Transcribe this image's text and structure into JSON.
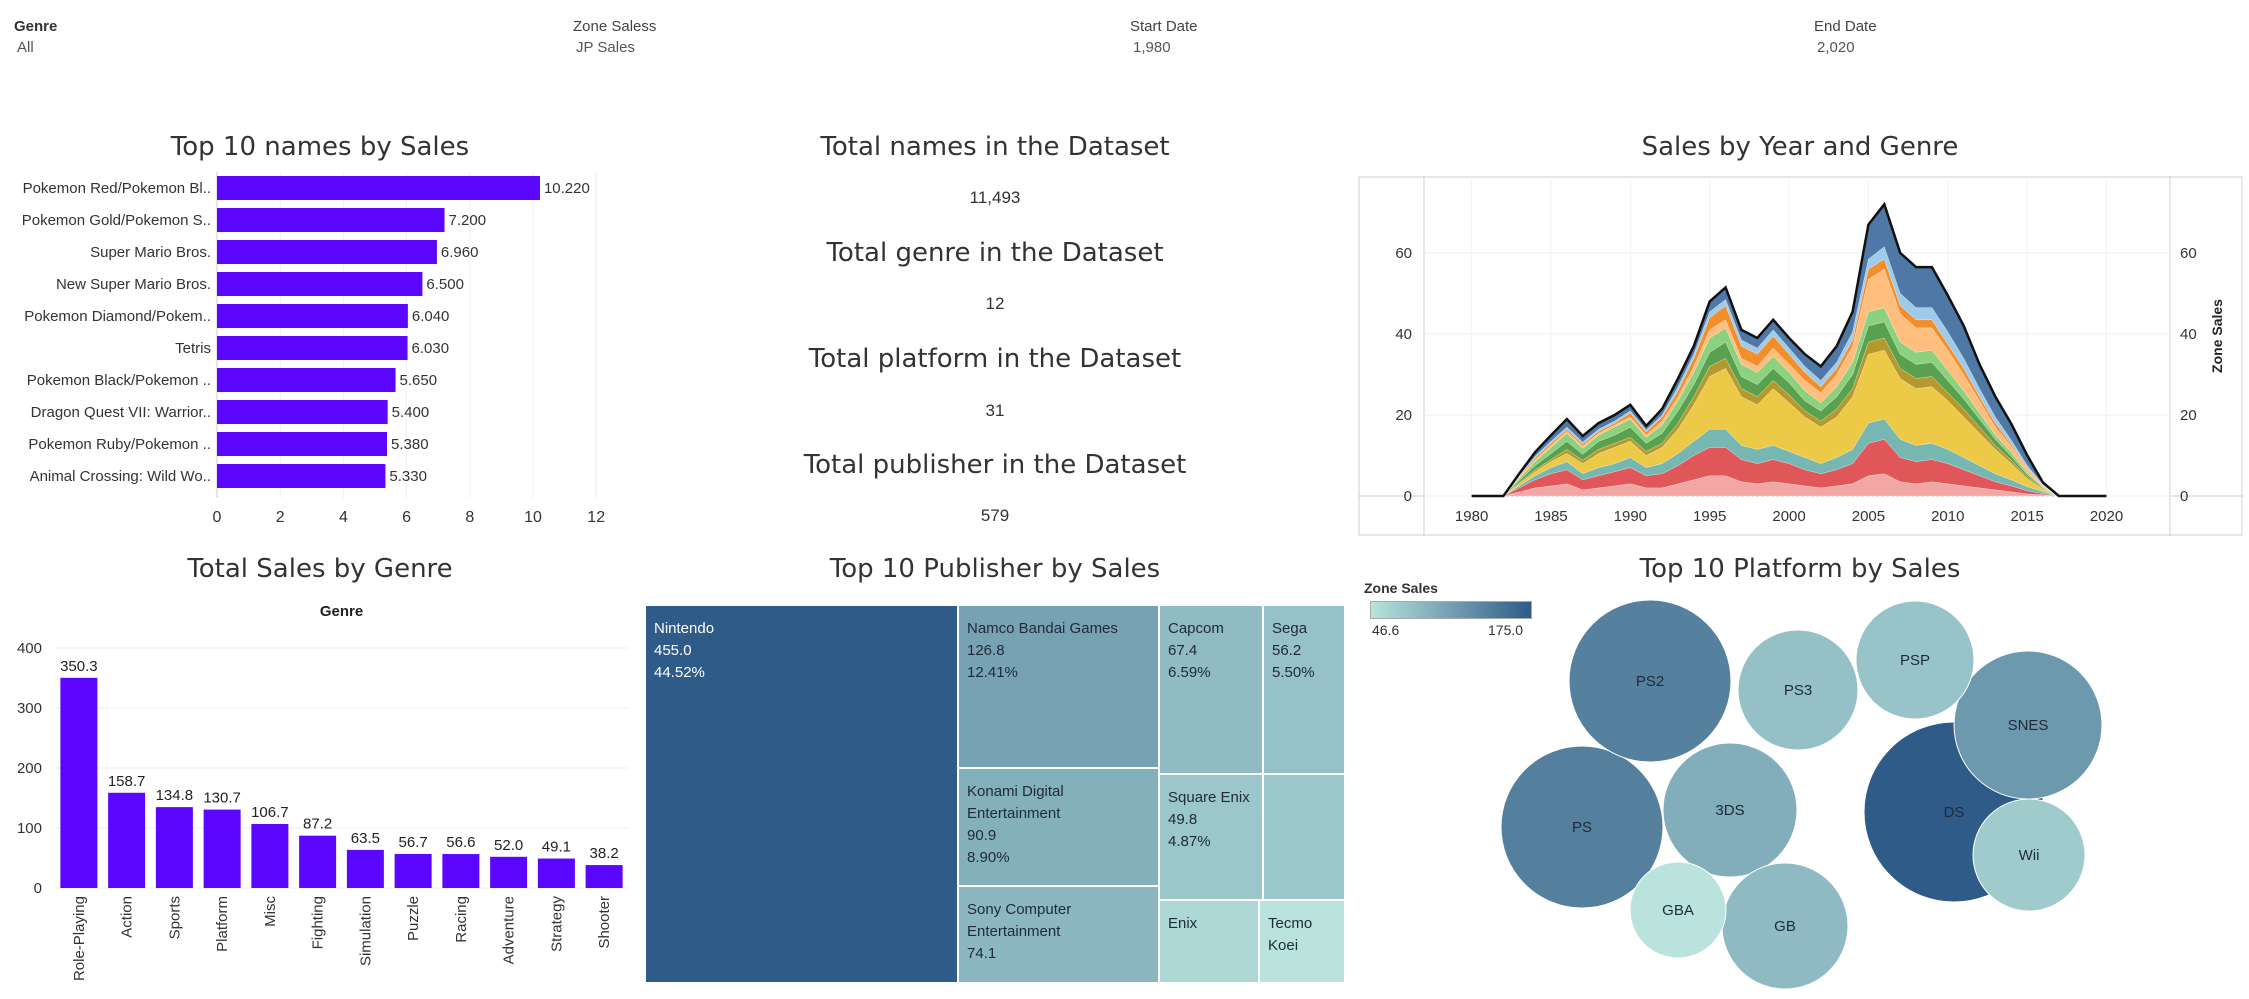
{
  "filters": [
    {
      "label": "Genre",
      "value": "All"
    },
    {
      "label": "Zone Saless",
      "value": "JP Sales"
    },
    {
      "label": "Start Date",
      "value": "1,980"
    },
    {
      "label": "End Date",
      "value": "2,020"
    }
  ],
  "titles": {
    "top_names": "Top 10 names by Sales",
    "sales_year_genre": "Sales by Year and Genre",
    "sales_by_genre": "Total Sales by Genre",
    "top_publisher": "Top 10 Publisher by Sales",
    "top_platform": "Top 10 Platform by Sales"
  },
  "kpis": [
    {
      "title": "Total names in the Dataset",
      "value": "11,493"
    },
    {
      "title": "Total genre in the Dataset",
      "value": "12"
    },
    {
      "title": "Total platform in the Dataset",
      "value": "31"
    },
    {
      "title": "Total publisher in the Dataset",
      "value": "579"
    }
  ],
  "colors": {
    "bar": "#5b06ff",
    "legend_low": "#b9e3dc",
    "legend_high": "#2e5b87"
  },
  "chart_data": [
    {
      "id": "top_names",
      "type": "bar",
      "orientation": "horizontal",
      "title": "Top 10 names by Sales",
      "categories": [
        "Pokemon Red/Pokemon Bl..",
        "Pokemon Gold/Pokemon S..",
        "Super Mario Bros.",
        "New Super Mario Bros.",
        "Pokemon Diamond/Pokem..",
        "Tetris",
        "Pokemon Black/Pokemon ..",
        "Dragon Quest VII: Warrior..",
        "Pokemon Ruby/Pokemon ..",
        "Animal Crossing: Wild Wo.."
      ],
      "values": [
        10.22,
        7.2,
        6.96,
        6.5,
        6.04,
        6.03,
        5.65,
        5.4,
        5.38,
        5.33
      ],
      "value_labels": [
        "10.220",
        "7.200",
        "6.960",
        "6.500",
        "6.040",
        "6.030",
        "5.650",
        "5.400",
        "5.380",
        "5.330"
      ],
      "xlim": [
        0,
        12.5
      ],
      "xticks": [
        "0",
        "2",
        "4",
        "6",
        "8",
        "10",
        "12"
      ]
    },
    {
      "id": "sales_year_genre",
      "type": "area",
      "stacked": true,
      "title": "Sales by Year and Genre",
      "ylabel": "Zone Sales",
      "x": [
        1980,
        1981,
        1982,
        1983,
        1984,
        1985,
        1986,
        1987,
        1988,
        1989,
        1990,
        1991,
        1992,
        1993,
        1994,
        1995,
        1996,
        1997,
        1998,
        1999,
        2000,
        2001,
        2002,
        2003,
        2004,
        2005,
        2006,
        2007,
        2008,
        2009,
        2010,
        2011,
        2012,
        2013,
        2014,
        2015,
        2016,
        2017,
        2018,
        2019,
        2020
      ],
      "xticks": [
        "1980",
        "1985",
        "1990",
        "1995",
        "2000",
        "2005",
        "2010",
        "2015",
        "2020"
      ],
      "ylim": [
        0,
        78
      ],
      "yticks": [
        "0",
        "20",
        "40",
        "60"
      ],
      "series": [
        {
          "color": "#f3a7a4",
          "values": [
            0,
            0,
            0,
            1.0,
            2.0,
            2.5,
            3.0,
            1.5,
            2.0,
            2.5,
            3.0,
            2.0,
            2.0,
            3.0,
            4.0,
            5.0,
            5.0,
            3.5,
            3.0,
            3.5,
            3.0,
            2.5,
            2.0,
            2.5,
            3.0,
            5.0,
            5.5,
            3.5,
            3.0,
            3.5,
            3.0,
            2.5,
            2.0,
            1.5,
            1.0,
            0.5,
            0.3,
            0,
            0,
            0,
            0
          ]
        },
        {
          "color": "#e15759",
          "values": [
            0,
            0,
            0,
            1.0,
            2.0,
            3.0,
            3.5,
            2.5,
            3.0,
            3.5,
            4.0,
            3.0,
            3.5,
            4.5,
            6.0,
            7.0,
            7.0,
            5.5,
            5.0,
            5.5,
            5.0,
            4.0,
            3.5,
            4.0,
            5.0,
            8.0,
            8.5,
            6.0,
            5.5,
            5.5,
            5.0,
            4.0,
            3.0,
            2.0,
            1.5,
            0.8,
            0.3,
            0,
            0,
            0,
            0
          ]
        },
        {
          "color": "#76b7b2",
          "values": [
            0,
            0,
            0,
            0.5,
            1.0,
            1.5,
            2.0,
            1.5,
            2.0,
            2.0,
            2.5,
            2.0,
            2.5,
            3.0,
            3.5,
            4.5,
            4.5,
            3.5,
            3.5,
            3.5,
            3.0,
            3.0,
            2.5,
            3.0,
            3.5,
            5.0,
            5.0,
            4.5,
            4.0,
            4.0,
            3.5,
            3.0,
            2.5,
            2.0,
            1.5,
            1.0,
            0.5,
            0,
            0,
            0,
            0
          ]
        },
        {
          "color": "#edc948",
          "values": [
            0,
            0,
            0,
            0.5,
            1.0,
            1.5,
            2.0,
            2.5,
            3.5,
            4.0,
            4.0,
            3.0,
            4.0,
            6.0,
            9.0,
            13.0,
            15.0,
            12.0,
            11.0,
            14.0,
            12.0,
            10.0,
            9.0,
            10.0,
            13.0,
            17.0,
            17.0,
            15.0,
            14.0,
            14.0,
            12.0,
            10.0,
            8.0,
            6.0,
            4.0,
            2.0,
            0.5,
            0,
            0,
            0,
            0
          ]
        },
        {
          "color": "#b6992d",
          "values": [
            0,
            0,
            0,
            0.3,
            0.5,
            0.5,
            1.0,
            0.8,
            1.0,
            1.0,
            1.0,
            1.0,
            1.0,
            1.5,
            2.0,
            2.5,
            2.5,
            2.0,
            2.0,
            2.0,
            2.0,
            1.5,
            1.5,
            2.0,
            2.0,
            3.0,
            3.0,
            2.5,
            2.5,
            2.5,
            2.0,
            2.0,
            1.5,
            1.0,
            0.8,
            0.5,
            0.2,
            0,
            0,
            0,
            0
          ]
        },
        {
          "color": "#59a14f",
          "values": [
            0,
            0,
            0,
            0.5,
            1.0,
            1.5,
            2.0,
            1.5,
            2.0,
            2.0,
            2.5,
            2.0,
            2.5,
            3.0,
            3.0,
            3.5,
            4.0,
            3.0,
            3.0,
            3.0,
            3.0,
            2.5,
            2.5,
            3.0,
            3.5,
            4.0,
            4.0,
            3.5,
            3.5,
            3.5,
            3.0,
            2.5,
            2.0,
            1.5,
            1.0,
            0.5,
            0.2,
            0,
            0,
            0,
            0
          ]
        },
        {
          "color": "#8cd17d",
          "values": [
            0,
            0,
            0,
            0.5,
            1.0,
            1.5,
            2.0,
            1.5,
            1.5,
            2.0,
            2.0,
            1.5,
            2.0,
            2.5,
            3.0,
            3.5,
            3.5,
            3.0,
            3.0,
            3.0,
            2.5,
            2.5,
            2.0,
            2.5,
            3.0,
            3.5,
            3.5,
            3.0,
            3.0,
            3.0,
            2.5,
            2.0,
            1.5,
            1.0,
            1.0,
            0.5,
            0.2,
            0,
            0,
            0,
            0
          ]
        },
        {
          "color": "#ffbe7d",
          "values": [
            0,
            0,
            0,
            0.3,
            0.5,
            0.5,
            0.5,
            0.5,
            0.5,
            0.5,
            0.5,
            0.5,
            1.0,
            1.0,
            1.5,
            2.0,
            2.0,
            1.5,
            1.5,
            2.0,
            2.0,
            2.5,
            2.5,
            3.0,
            4.0,
            8.0,
            9.5,
            7.0,
            6.0,
            5.5,
            5.0,
            4.0,
            3.0,
            2.0,
            1.5,
            1.0,
            0.3,
            0,
            0,
            0,
            0
          ]
        },
        {
          "color": "#f28e2b",
          "values": [
            0,
            0,
            0,
            0.2,
            0.5,
            0.5,
            0.5,
            0.5,
            0.5,
            0.5,
            1.0,
            0.8,
            1.0,
            1.5,
            2.0,
            3.0,
            3.5,
            3.0,
            3.0,
            3.0,
            2.5,
            2.0,
            1.5,
            1.5,
            1.5,
            2.5,
            2.5,
            2.0,
            2.0,
            2.0,
            1.5,
            1.5,
            1.0,
            1.0,
            0.5,
            0.3,
            0.1,
            0,
            0,
            0,
            0
          ]
        },
        {
          "color": "#a0cbe8",
          "values": [
            0,
            0,
            0,
            0.2,
            0.3,
            0.5,
            0.5,
            0.5,
            0.5,
            0.5,
            0.5,
            0.5,
            0.5,
            1.0,
            1.0,
            1.5,
            1.5,
            1.5,
            1.5,
            1.5,
            1.5,
            1.5,
            1.5,
            1.5,
            2.0,
            2.5,
            3.0,
            3.0,
            3.0,
            3.0,
            3.0,
            2.5,
            2.0,
            1.5,
            1.0,
            0.5,
            0.2,
            0,
            0,
            0,
            0
          ]
        },
        {
          "color": "#4e79a7",
          "values": [
            0,
            0,
            0,
            0.5,
            1.0,
            1.5,
            2.0,
            1.5,
            1.5,
            1.5,
            1.5,
            1.0,
            1.5,
            2.0,
            2.0,
            2.5,
            3.0,
            2.5,
            2.5,
            2.5,
            2.5,
            3.0,
            3.5,
            4.0,
            5.0,
            8.5,
            10.5,
            10.0,
            10.0,
            10.0,
            9.0,
            8.0,
            6.0,
            5.0,
            4.0,
            2.5,
            0.5,
            0,
            0,
            0,
            0
          ]
        }
      ]
    },
    {
      "id": "sales_by_genre",
      "type": "bar",
      "title": "Total Sales by Genre",
      "xlabel": "Genre",
      "categories": [
        "Role-Playing",
        "Action",
        "Sports",
        "Platform",
        "Misc",
        "Fighting",
        "Simulation",
        "Puzzle",
        "Racing",
        "Adventure",
        "Strategy",
        "Shooter"
      ],
      "values": [
        350.3,
        158.7,
        134.8,
        130.7,
        106.7,
        87.2,
        63.5,
        56.7,
        56.6,
        52.0,
        49.1,
        38.2
      ],
      "value_labels": [
        "350.3",
        "158.7",
        "134.8",
        "130.7",
        "106.7",
        "87.2",
        "63.5",
        "56.7",
        "56.6",
        "52.0",
        "49.1",
        "38.2"
      ],
      "ylim": [
        0,
        420
      ],
      "yticks": [
        "0",
        "100",
        "200",
        "300",
        "400"
      ]
    },
    {
      "id": "top_publisher",
      "type": "heatmap",
      "subtype": "treemap",
      "title": "Top 10 Publisher by Sales",
      "items": [
        {
          "name": "Nintendo",
          "value": "455.0",
          "pct": "44.52%",
          "v": 455.0
        },
        {
          "name": "Namco Bandai Games",
          "value": "126.8",
          "pct": "12.41%",
          "v": 126.8
        },
        {
          "name": "Konami Digital Entertainment",
          "value": "90.9",
          "pct": "8.90%",
          "v": 90.9
        },
        {
          "name": "Sony Computer Entertainment",
          "value": "74.1",
          "pct": "",
          "v": 74.1
        },
        {
          "name": "Capcom",
          "value": "67.4",
          "pct": "6.59%",
          "v": 67.4
        },
        {
          "name": "Sega",
          "value": "56.2",
          "pct": "5.50%",
          "v": 56.2
        },
        {
          "name": "Square Enix",
          "value": "49.8",
          "pct": "4.87%",
          "v": 49.8
        },
        {
          "name": "",
          "value": "",
          "pct": "",
          "v": 47.0
        },
        {
          "name": "Enix",
          "value": "",
          "pct": "",
          "v": 33.0
        },
        {
          "name": "Tecmo Koei",
          "value": "",
          "pct": "",
          "v": 30.0
        }
      ]
    },
    {
      "id": "top_platform",
      "type": "scatter",
      "subtype": "packed-bubble",
      "title": "Top 10 Platform by Sales",
      "legend_title": "Zone Sales",
      "legend_min": "46.6",
      "legend_max": "175.0",
      "items": [
        {
          "name": "DS",
          "value": 175.0
        },
        {
          "name": "PS",
          "value": 139.8
        },
        {
          "name": "PS2",
          "value": 139.2
        },
        {
          "name": "SNES",
          "value": 116.6
        },
        {
          "name": "3DS",
          "value": 97.4
        },
        {
          "name": "GB",
          "value": 85.1
        },
        {
          "name": "PS3",
          "value": 79.8
        },
        {
          "name": "Wii",
          "value": 69.3
        },
        {
          "name": "PSP",
          "value": 76.8
        },
        {
          "name": "GBA",
          "value": 46.6
        }
      ]
    }
  ]
}
